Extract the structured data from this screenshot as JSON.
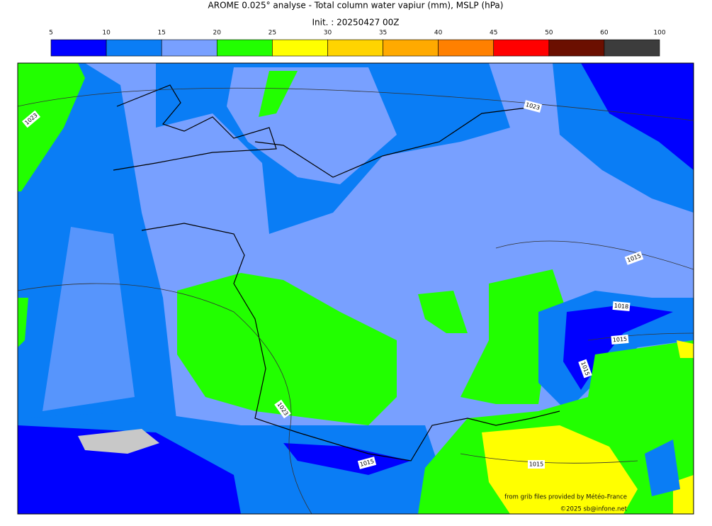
{
  "title": "AROME 0.025° analyse - Total column water vapiur (mm), MSLP (hPa)",
  "subtitle": "Init. : 20250427 00Z",
  "colorbar": {
    "ticks": [
      "5",
      "10",
      "15",
      "20",
      "25",
      "30",
      "35",
      "40",
      "45",
      "50",
      "60",
      "100"
    ],
    "colors": [
      "#0000ff",
      "#0a7df5",
      "#78a0ff",
      "#22ff00",
      "#ffff00",
      "#ffd400",
      "#ffaa00",
      "#ff8000",
      "#ff0000",
      "#6b0f00",
      "#3c3c3c"
    ]
  },
  "isobar_labels": [
    "1023",
    "1023",
    "1023",
    "1015",
    "1018",
    "1015",
    "1015",
    "1015",
    "1015"
  ],
  "credits": [
    "from grib files provided by Météo-France",
    "©2025 sb@infone.net"
  ]
}
